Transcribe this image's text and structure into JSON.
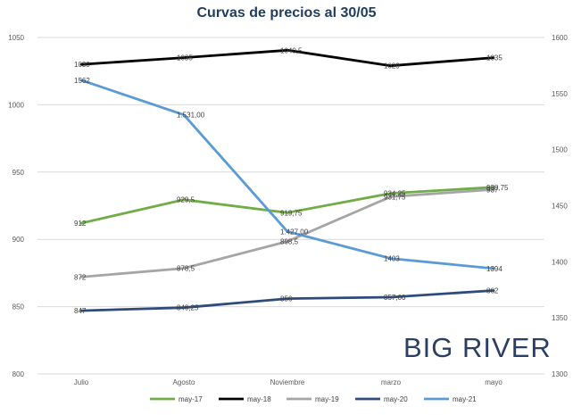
{
  "chart_data": {
    "type": "line",
    "title": "Curvas de precios al 30/05",
    "categories": [
      "Julio",
      "Agosto",
      "Noviembre",
      "marzo",
      "mayo"
    ],
    "y_left": {
      "range": [
        800,
        1050
      ],
      "ticks": [
        "800",
        "850",
        "900",
        "950",
        "1000",
        "1050"
      ]
    },
    "y_right": {
      "range": [
        1300,
        1600
      ],
      "ticks": [
        "1300",
        "1350",
        "1400",
        "1450",
        "1500",
        "1550",
        "1600"
      ]
    },
    "grid": true,
    "legend_position": "bottom",
    "series": [
      {
        "name": "may-17",
        "color": "#70ad47",
        "axis": "left",
        "values": [
          912,
          929.5,
          919.75,
          934.25,
          938.75
        ],
        "labels": [
          "912",
          "929,5",
          "919,75",
          "934,25",
          "938,75"
        ]
      },
      {
        "name": "may-18",
        "color": "#000000",
        "axis": "left",
        "values": [
          1030,
          1035,
          1040.5,
          1029,
          1035
        ],
        "labels": [
          "1030",
          "1035",
          "1040,5",
          "1029",
          "1035"
        ]
      },
      {
        "name": "may-19",
        "color": "#a5a5a5",
        "axis": "left",
        "values": [
          872,
          878.5,
          898.5,
          931.75,
          937
        ],
        "labels": [
          "872",
          "878,5",
          "898,5",
          "931,75",
          "937"
        ]
      },
      {
        "name": "may-20",
        "color": "#2f4b7c",
        "axis": "left",
        "values": [
          847,
          849.25,
          856,
          857,
          862
        ],
        "labels": [
          "847",
          "849,25",
          "856",
          "857,00",
          "862"
        ]
      },
      {
        "name": "may-21",
        "color": "#5b9bd5",
        "axis": "right",
        "values": [
          1562,
          1531,
          1427,
          1403,
          1394
        ],
        "labels": [
          "1562",
          "1.531,00",
          "1.427,00",
          "1403",
          "1394"
        ]
      }
    ]
  },
  "watermark": {
    "text": "BIG RIVER"
  }
}
